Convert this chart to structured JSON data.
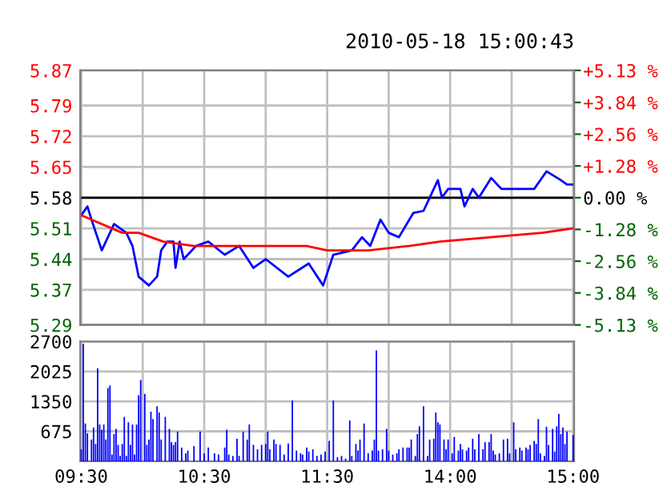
{
  "chart_data": [
    {
      "type": "line",
      "title": "2010-05-18 15:00:43",
      "categories": [
        null,
        null,
        null,
        null,
        null,
        null,
        null,
        null,
        null,
        null,
        null,
        null,
        null,
        null,
        null,
        null,
        null,
        null,
        null,
        null,
        null,
        null,
        null,
        null,
        null,
        null,
        null,
        null,
        null,
        null,
        null,
        null,
        null,
        null,
        null,
        null,
        null,
        null,
        null,
        null,
        null,
        null,
        null,
        null,
        null,
        null,
        null,
        null,
        null,
        null,
        null,
        null,
        null,
        null,
        null,
        null,
        null,
        null,
        null,
        null,
        null,
        null,
        null,
        null,
        null,
        null,
        null,
        null,
        null,
        null,
        null,
        null,
        null,
        null,
        null,
        null,
        null,
        null,
        null,
        null,
        null,
        null,
        null,
        null,
        null,
        null,
        null,
        null,
        null,
        null,
        null,
        null,
        null,
        null,
        null,
        null,
        null,
        null,
        null,
        null,
        null,
        null,
        null,
        null,
        null,
        null,
        null,
        null,
        null,
        null,
        null,
        null,
        null,
        null,
        null,
        null,
        null,
        null,
        null,
        null,
        null,
        null,
        null,
        null,
        null,
        null,
        null,
        null,
        null,
        null,
        null,
        null,
        null,
        null,
        null,
        null,
        null,
        null,
        null,
        null,
        null,
        null,
        null,
        null,
        null,
        null,
        null,
        null,
        null,
        null,
        null,
        null,
        null,
        null,
        null,
        null,
        null,
        null,
        null,
        null,
        null,
        null,
        null,
        null,
        null,
        null,
        null,
        null,
        null,
        null,
        null,
        null,
        null,
        null,
        null,
        null,
        null,
        null,
        null,
        null,
        null,
        null,
        null,
        null,
        null,
        null,
        null,
        null,
        null,
        null,
        null,
        null,
        null,
        null,
        null,
        null,
        null,
        null,
        null,
        null,
        null,
        null,
        null,
        null,
        null,
        null,
        null,
        null,
        null,
        null,
        null,
        null,
        null,
        null,
        null,
        null,
        null,
        null,
        null,
        null,
        null,
        null,
        null,
        null,
        null,
        null,
        null,
        null,
        null,
        null,
        null,
        null,
        null,
        null,
        null,
        null,
        null,
        null,
        null,
        null,
        null
      ],
      "tick_labels": "y",
      "series": [
        {
          "color": "#0000ff",
          "values": [
            5.54,
            null,
            null,
            5.56,
            null,
            5.53,
            null,
            null,
            null,
            null,
            5.46,
            null,
            null,
            null,
            null,
            null,
            5.52,
            null,
            null,
            null,
            null,
            null,
            5.5,
            null,
            null,
            5.47,
            null,
            null,
            5.4,
            null,
            null,
            null,
            null,
            5.38,
            null,
            null,
            null,
            5.4,
            null,
            5.46,
            null,
            null,
            5.48,
            null,
            null,
            5.48,
            5.42,
            null,
            5.48,
            null,
            5.44,
            null,
            null,
            null,
            null,
            null,
            5.47,
            null,
            null,
            null,
            null,
            null,
            5.48,
            null,
            null,
            null,
            null,
            null,
            null,
            null,
            5.45,
            null,
            null,
            null,
            null,
            null,
            null,
            5.47,
            null,
            null,
            null,
            null,
            null,
            null,
            5.42,
            null,
            null,
            null,
            null,
            null,
            5.44,
            null,
            null,
            null,
            null,
            null,
            null,
            null,
            null,
            null,
            null,
            5.4,
            null,
            null,
            null,
            null,
            null,
            null,
            null,
            null,
            null,
            5.43,
            null,
            null,
            null,
            null,
            null,
            null,
            5.38,
            null,
            null,
            null,
            null,
            5.45,
            null,
            null,
            null,
            null,
            null,
            null,
            null,
            null,
            5.46,
            null,
            null,
            null,
            null,
            5.49,
            null,
            null,
            null,
            5.47,
            null,
            null,
            null,
            null,
            5.53,
            null,
            null,
            null,
            5.5,
            null,
            null,
            null,
            null,
            5.49,
            null,
            null,
            null,
            null,
            null,
            null,
            5.545,
            null,
            null,
            null,
            null,
            5.55,
            null,
            null,
            5.58,
            null,
            null,
            null,
            5.62,
            null,
            5.58,
            null,
            null,
            5.6,
            null,
            null,
            null,
            null,
            null,
            5.6,
            null,
            5.56,
            null,
            null,
            null,
            5.6,
            null,
            null,
            5.58,
            null,
            null,
            null,
            null,
            null,
            5.625,
            null,
            null,
            null,
            null,
            5.6,
            null,
            null,
            null,
            null,
            null,
            null,
            null,
            null,
            null,
            5.6,
            null,
            null,
            null,
            null,
            null,
            5.6,
            null,
            null,
            null,
            null,
            null,
            5.64,
            null,
            null,
            null,
            null,
            null,
            null,
            5.62,
            null,
            null,
            5.61,
            null,
            null,
            5.61
          ]
        },
        {
          "color": "#ff0000",
          "values": [
            5.54,
            null,
            null,
            null,
            null,
            5.53,
            null,
            null,
            null,
            null,
            null,
            null,
            null,
            null,
            null,
            null,
            null,
            null,
            null,
            null,
            5.5,
            null,
            null,
            null,
            null,
            null,
            null,
            null,
            5.5,
            null,
            null,
            null,
            null,
            null,
            null,
            null,
            null,
            null,
            null,
            null,
            5.48,
            null,
            null,
            null,
            null,
            null,
            null,
            null,
            null,
            null,
            null,
            null,
            null,
            null,
            null,
            5.47,
            null,
            null,
            null,
            null,
            null,
            null,
            null,
            null,
            null,
            null,
            null,
            null,
            null,
            null,
            null,
            null,
            null,
            null,
            null,
            null,
            null,
            null,
            null,
            null,
            null,
            null,
            null,
            null,
            null,
            null,
            null,
            null,
            null,
            null,
            null,
            null,
            null,
            null,
            null,
            null,
            null,
            null,
            null,
            null,
            null,
            null,
            null,
            null,
            null,
            null,
            null,
            null,
            null,
            null,
            5.47,
            null,
            null,
            null,
            null,
            null,
            null,
            null,
            null,
            null,
            5.46,
            null,
            null,
            null,
            null,
            null,
            null,
            null,
            null,
            null,
            null,
            null,
            null,
            null,
            null,
            null,
            null,
            null,
            null,
            null,
            5.46,
            null,
            null,
            null,
            null,
            null,
            null,
            null,
            null,
            null,
            null,
            null,
            null,
            null,
            null,
            null,
            null,
            null,
            null,
            null,
            5.47,
            null,
            null,
            null,
            null,
            null,
            null,
            null,
            null,
            null,
            null,
            null,
            null,
            null,
            null,
            5.48,
            null,
            null,
            null,
            null,
            null,
            null,
            null,
            null,
            null,
            null,
            null,
            null,
            null,
            null,
            null,
            null,
            null,
            null,
            null,
            null,
            null,
            null,
            null,
            null,
            5.49,
            null,
            null,
            null,
            null,
            null,
            null,
            null,
            null,
            null,
            null,
            null,
            null,
            null,
            null,
            null,
            null,
            null,
            null,
            null,
            null,
            null,
            null,
            null,
            null,
            5.5,
            null,
            null,
            null,
            null,
            null,
            null,
            null,
            null,
            null,
            null,
            null,
            null,
            null,
            null,
            5.51
          ]
        }
      ],
      "ylim": [
        5.29,
        5.87
      ],
      "yticks": [
        5.29,
        5.37,
        5.44,
        5.51,
        5.58,
        5.65,
        5.72,
        5.79,
        5.87
      ],
      "y2lim": [
        -5.13,
        5.13
      ],
      "y2ticks": [
        {
          "value": -5.13,
          "label": "-5.13 %"
        },
        {
          "value": -3.84,
          "label": "-3.84 %"
        },
        {
          "value": -2.56,
          "label": "-2.56 %"
        },
        {
          "value": -1.28,
          "label": "-1.28 %"
        },
        {
          "value": 0,
          "label": "0.00 %"
        },
        {
          "value": 1.28,
          "label": "+1.28 %"
        },
        {
          "value": 2.56,
          "label": "+2.56 %"
        },
        {
          "value": 3.84,
          "label": "+3.84 %"
        },
        {
          "value": 5.13,
          "label": "+5.13 %"
        }
      ],
      "ref_lines": [
        {
          "axis": "y",
          "value": 5.58,
          "color": "#000000"
        }
      ],
      "grid": true,
      "marker": "none",
      "line_style": "solid"
    },
    {
      "type": "bar",
      "color": "#0000ff",
      "categories": [
        "09:30",
        null,
        null,
        null,
        null,
        null,
        null,
        null,
        null,
        null,
        null,
        null,
        null,
        null,
        null,
        null,
        null,
        null,
        null,
        null,
        null,
        null,
        null,
        null,
        null,
        null,
        null,
        null,
        null,
        null,
        null,
        null,
        null,
        null,
        null,
        null,
        null,
        null,
        null,
        null,
        null,
        null,
        null,
        null,
        null,
        null,
        null,
        null,
        null,
        null,
        null,
        null,
        null,
        null,
        null,
        null,
        null,
        null,
        null,
        null,
        "10:30",
        null,
        null,
        null,
        null,
        null,
        null,
        null,
        null,
        null,
        null,
        null,
        null,
        null,
        null,
        null,
        null,
        null,
        null,
        null,
        null,
        null,
        null,
        null,
        null,
        null,
        null,
        null,
        null,
        null,
        null,
        null,
        null,
        null,
        null,
        null,
        null,
        null,
        null,
        null,
        null,
        null,
        null,
        null,
        null,
        null,
        null,
        null,
        null,
        null,
        null,
        null,
        null,
        null,
        null,
        null,
        null,
        null,
        null,
        null,
        "11:30",
        null,
        null,
        null,
        null,
        null,
        null,
        null,
        null,
        null,
        null,
        null,
        null,
        null,
        null,
        null,
        null,
        null,
        null,
        null,
        null,
        null,
        null,
        null,
        null,
        null,
        null,
        null,
        null,
        null,
        null,
        null,
        null,
        null,
        null,
        null,
        null,
        null,
        null,
        null,
        null,
        null,
        null,
        null,
        null,
        null,
        null,
        null,
        null,
        null,
        null,
        null,
        null,
        null,
        null,
        null,
        null,
        null,
        null,
        null,
        "14:00",
        null,
        null,
        null,
        null,
        null,
        null,
        null,
        null,
        null,
        null,
        null,
        null,
        null,
        null,
        null,
        null,
        null,
        null,
        null,
        null,
        null,
        null,
        null,
        null,
        null,
        null,
        null,
        null,
        null,
        null,
        null,
        null,
        null,
        null,
        null,
        null,
        null,
        null,
        null,
        null,
        null,
        null,
        null,
        null,
        null,
        null,
        null,
        null,
        null,
        null,
        null,
        null,
        null,
        null,
        null,
        null,
        null,
        null,
        null,
        "15:00"
      ],
      "values": [
        270,
        2650,
        850,
        630,
        null,
        490,
        760,
        390,
        2100,
        830,
        710,
        830,
        490,
        1650,
        1710,
        150,
        610,
        730,
        370,
        120,
        390,
        1000,
        120,
        880,
        370,
        830,
        150,
        830,
        1490,
        1830,
        null,
        1520,
        370,
        490,
        1120,
        950,
        null,
        1240,
        1100,
        490,
        null,
        1000,
        null,
        730,
        430,
        370,
        430,
        670,
        null,
        310,
        null,
        180,
        240,
        null,
        null,
        340,
        null,
        null,
        670,
        null,
        180,
        null,
        310,
        null,
        null,
        180,
        null,
        150,
        null,
        null,
        310,
        710,
        150,
        null,
        120,
        null,
        510,
        120,
        null,
        670,
        null,
        490,
        830,
        null,
        370,
        null,
        270,
        null,
        370,
        null,
        390,
        670,
        270,
        null,
        490,
        390,
        null,
        370,
        null,
        150,
        null,
        400,
        null,
        1370,
        null,
        240,
        null,
        180,
        150,
        null,
        310,
        220,
        null,
        270,
        null,
        120,
        null,
        150,
        null,
        220,
        null,
        460,
        null,
        1370,
        null,
        90,
        null,
        120,
        null,
        60,
        null,
        920,
        120,
        null,
        390,
        240,
        490,
        null,
        850,
        null,
        180,
        null,
        240,
        490,
        2500,
        240,
        null,
        270,
        null,
        730,
        240,
        null,
        150,
        null,
        180,
        270,
        null,
        310,
        null,
        310,
        310,
        490,
        null,
        120,
        610,
        790,
        null,
        1240,
        null,
        120,
        490,
        null,
        510,
        1100,
        880,
        830,
        null,
        490,
        270,
        490,
        null,
        180,
        550,
        null,
        240,
        390,
        270,
        null,
        240,
        310,
        null,
        510,
        270,
        null,
        610,
        null,
        270,
        430,
        null,
        430,
        610,
        240,
        150,
        null,
        180,
        null,
        490,
        null,
        510,
        180,
        null,
        880,
        270,
        null,
        310,
        240,
        null,
        310,
        270,
        370,
        null,
        460,
        390,
        950,
        180,
        null,
        120,
        780,
        370,
        null,
        730,
        220,
        790,
        1070,
        610,
        760,
        390,
        670,
        null,
        null,
        590
      ],
      "ylim": [
        0,
        2700
      ],
      "yticks": [
        675,
        1350,
        2025,
        2700
      ],
      "grid": true
    }
  ]
}
